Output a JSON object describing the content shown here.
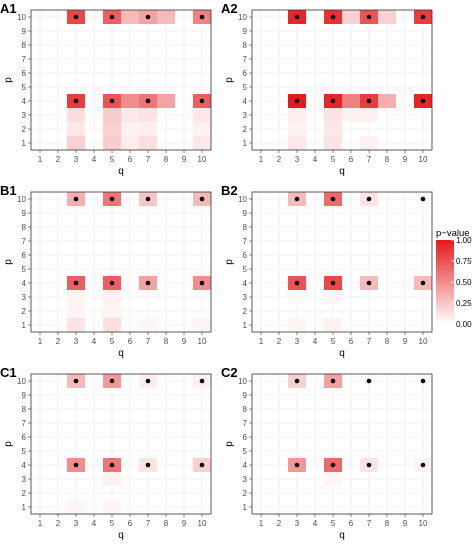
{
  "chart_data": {
    "type": "heatmap",
    "x_label": "q",
    "y_label": "p",
    "x_ticks": [
      "1",
      "2",
      "3",
      "4",
      "5",
      "6",
      "7",
      "8",
      "9",
      "10"
    ],
    "y_ticks": [
      "1",
      "2",
      "3",
      "4",
      "5",
      "6",
      "7",
      "8",
      "9",
      "10"
    ],
    "x_range": [
      1,
      10
    ],
    "y_range": [
      1,
      10
    ],
    "grid": true,
    "color_scale": {
      "low": "#ffffff",
      "high": "#e41a1c"
    },
    "legend": {
      "title": "p−value",
      "placement": "right",
      "ticks": [
        "1.00",
        "0.75",
        "0.50",
        "0.25",
        "0.00"
      ],
      "range": [
        0,
        1
      ]
    },
    "panels": [
      {
        "label": "A1",
        "cells": [
          [
            3,
            10,
            0.8
          ],
          [
            5,
            10,
            0.7
          ],
          [
            6,
            10,
            0.3
          ],
          [
            7,
            10,
            0.4
          ],
          [
            8,
            10,
            0.3
          ],
          [
            10,
            10,
            0.55
          ],
          [
            3,
            4,
            0.85
          ],
          [
            5,
            4,
            0.75
          ],
          [
            6,
            4,
            0.5
          ],
          [
            7,
            4,
            0.6
          ],
          [
            8,
            4,
            0.4
          ],
          [
            10,
            4,
            0.7
          ],
          [
            3,
            3,
            0.15
          ],
          [
            5,
            3,
            0.22
          ],
          [
            6,
            3,
            0.1
          ],
          [
            7,
            3,
            0.12
          ],
          [
            10,
            3,
            0.1
          ],
          [
            3,
            2,
            0.1
          ],
          [
            5,
            2,
            0.2
          ],
          [
            6,
            2,
            0.06
          ],
          [
            7,
            2,
            0.08
          ],
          [
            10,
            2,
            0.06
          ],
          [
            3,
            1,
            0.2
          ],
          [
            5,
            1,
            0.22
          ],
          [
            6,
            1,
            0.08
          ],
          [
            7,
            1,
            0.14
          ],
          [
            10,
            1,
            0.1
          ]
        ],
        "points": [
          [
            3,
            10
          ],
          [
            5,
            10
          ],
          [
            7,
            10
          ],
          [
            10,
            10
          ],
          [
            3,
            4
          ],
          [
            5,
            4
          ],
          [
            7,
            4
          ],
          [
            10,
            4
          ]
        ]
      },
      {
        "label": "A2",
        "cells": [
          [
            3,
            10,
            0.95
          ],
          [
            5,
            10,
            0.9
          ],
          [
            6,
            10,
            0.2
          ],
          [
            7,
            10,
            0.75
          ],
          [
            8,
            10,
            0.2
          ],
          [
            10,
            10,
            0.85
          ],
          [
            3,
            4,
            1.0
          ],
          [
            5,
            4,
            0.95
          ],
          [
            6,
            4,
            0.55
          ],
          [
            7,
            4,
            0.85
          ],
          [
            8,
            4,
            0.35
          ],
          [
            10,
            4,
            0.95
          ],
          [
            3,
            3,
            0.08
          ],
          [
            5,
            3,
            0.12
          ],
          [
            6,
            3,
            0.06
          ],
          [
            7,
            3,
            0.06
          ],
          [
            3,
            2,
            0.06
          ],
          [
            5,
            2,
            0.1
          ],
          [
            3,
            1,
            0.1
          ],
          [
            5,
            1,
            0.12
          ],
          [
            7,
            1,
            0.06
          ]
        ],
        "points": [
          [
            3,
            10
          ],
          [
            5,
            10
          ],
          [
            7,
            10
          ],
          [
            10,
            10
          ],
          [
            3,
            4
          ],
          [
            5,
            4
          ],
          [
            7,
            4
          ],
          [
            10,
            4
          ]
        ]
      },
      {
        "label": "B1",
        "cells": [
          [
            3,
            10,
            0.35
          ],
          [
            5,
            10,
            0.6
          ],
          [
            7,
            10,
            0.25
          ],
          [
            10,
            10,
            0.3
          ],
          [
            3,
            4,
            0.7
          ],
          [
            5,
            4,
            0.7
          ],
          [
            7,
            4,
            0.4
          ],
          [
            10,
            4,
            0.5
          ],
          [
            3,
            3,
            0.05
          ],
          [
            5,
            3,
            0.06
          ],
          [
            3,
            2,
            0.04
          ],
          [
            5,
            2,
            0.05
          ],
          [
            3,
            1,
            0.12
          ],
          [
            5,
            1,
            0.14
          ],
          [
            7,
            1,
            0.04
          ],
          [
            10,
            1,
            0.04
          ]
        ],
        "points": [
          [
            3,
            10
          ],
          [
            5,
            10
          ],
          [
            7,
            10
          ],
          [
            10,
            10
          ],
          [
            3,
            4
          ],
          [
            5,
            4
          ],
          [
            7,
            4
          ],
          [
            10,
            4
          ]
        ]
      },
      {
        "label": "B2",
        "cells": [
          [
            3,
            10,
            0.3
          ],
          [
            5,
            10,
            0.65
          ],
          [
            7,
            10,
            0.12
          ],
          [
            3,
            4,
            0.75
          ],
          [
            5,
            4,
            0.8
          ],
          [
            7,
            4,
            0.3
          ],
          [
            10,
            4,
            0.3
          ],
          [
            3,
            3,
            0.03
          ],
          [
            5,
            3,
            0.04
          ],
          [
            3,
            1,
            0.05
          ],
          [
            5,
            1,
            0.06
          ]
        ],
        "points": [
          [
            3,
            10
          ],
          [
            5,
            10
          ],
          [
            7,
            10
          ],
          [
            10,
            10
          ],
          [
            3,
            4
          ],
          [
            5,
            4
          ],
          [
            7,
            4
          ],
          [
            10,
            4
          ]
        ]
      },
      {
        "label": "C1",
        "cells": [
          [
            3,
            10,
            0.3
          ],
          [
            5,
            10,
            0.45
          ],
          [
            7,
            10,
            0.08
          ],
          [
            10,
            10,
            0.06
          ],
          [
            3,
            4,
            0.5
          ],
          [
            5,
            4,
            0.6
          ],
          [
            7,
            4,
            0.12
          ],
          [
            10,
            4,
            0.2
          ],
          [
            5,
            3,
            0.06
          ],
          [
            3,
            1,
            0.04
          ],
          [
            5,
            1,
            0.04
          ]
        ],
        "points": [
          [
            3,
            10
          ],
          [
            5,
            10
          ],
          [
            7,
            10
          ],
          [
            10,
            10
          ],
          [
            3,
            4
          ],
          [
            5,
            4
          ],
          [
            7,
            4
          ],
          [
            10,
            4
          ]
        ]
      },
      {
        "label": "C2",
        "cells": [
          [
            3,
            10,
            0.2
          ],
          [
            5,
            10,
            0.4
          ],
          [
            3,
            4,
            0.45
          ],
          [
            5,
            4,
            0.65
          ],
          [
            7,
            4,
            0.12
          ],
          [
            10,
            4,
            0.05
          ],
          [
            5,
            3,
            0.04
          ]
        ],
        "points": [
          [
            3,
            10
          ],
          [
            5,
            10
          ],
          [
            7,
            10
          ],
          [
            10,
            10
          ],
          [
            3,
            4
          ],
          [
            5,
            4
          ],
          [
            7,
            4
          ],
          [
            10,
            4
          ]
        ]
      }
    ]
  }
}
